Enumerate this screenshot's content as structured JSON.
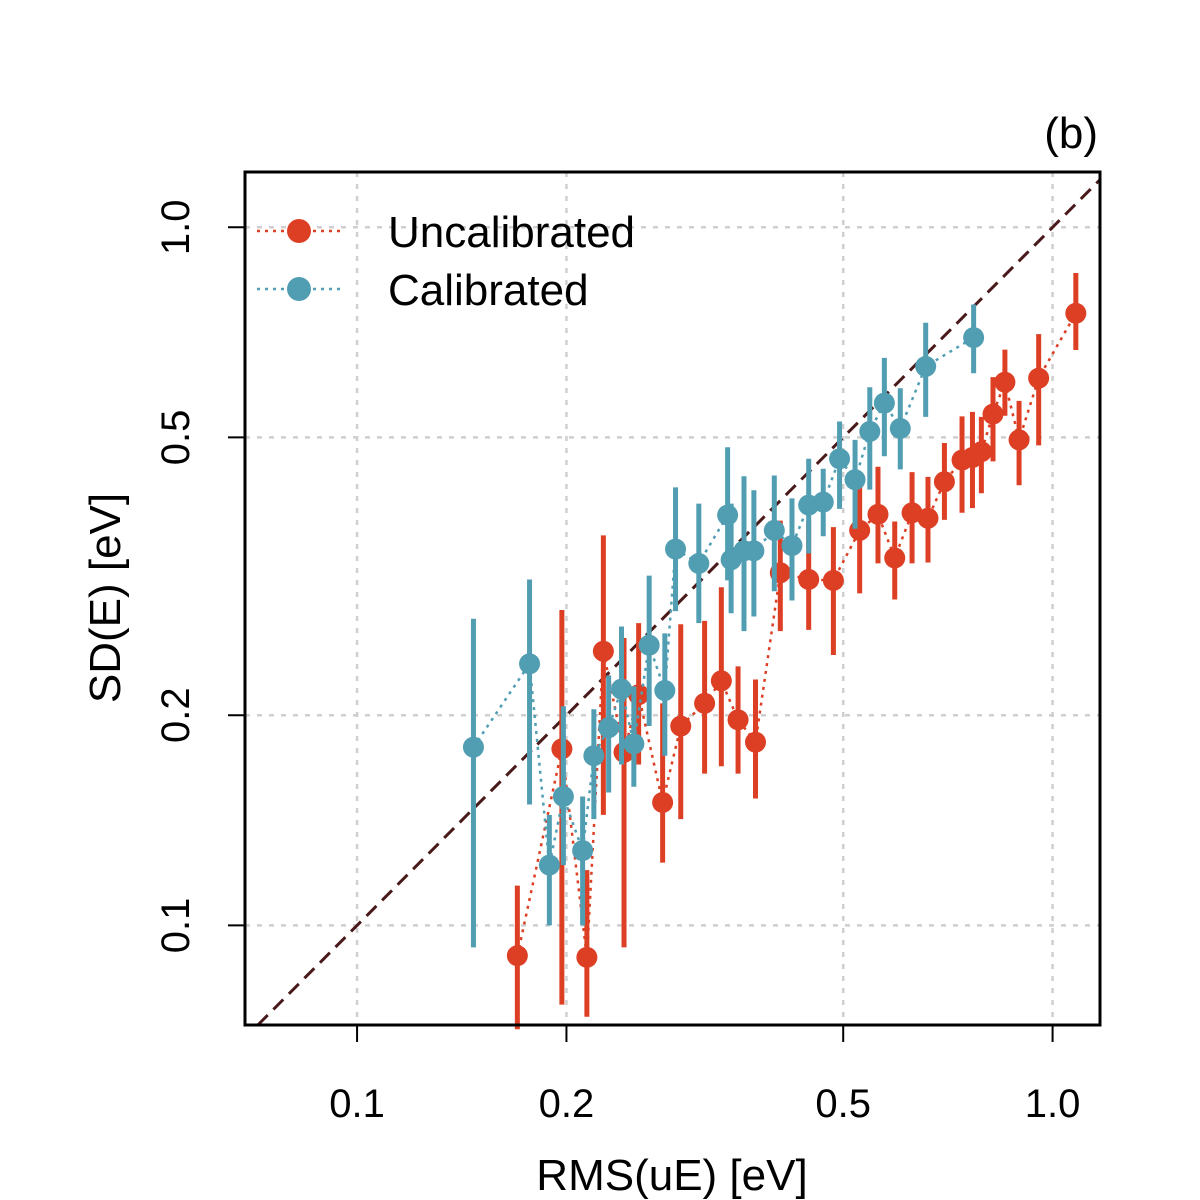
{
  "chart_data": {
    "type": "scatter",
    "panel_label": "(b)",
    "xlabel": "RMS(uE) [eV]",
    "ylabel": "SD(E) [eV]",
    "x_scale": "log",
    "y_scale": "log",
    "xlim": [
      0.069,
      1.17
    ],
    "ylim": [
      0.072,
      1.2
    ],
    "x_ticks": [
      {
        "value": 0.1,
        "label": "0.1"
      },
      {
        "value": 0.2,
        "label": "0.2"
      },
      {
        "value": 0.5,
        "label": "0.5"
      },
      {
        "value": 1.0,
        "label": "1.0"
      }
    ],
    "y_ticks": [
      {
        "value": 0.1,
        "label": "0.1"
      },
      {
        "value": 0.2,
        "label": "0.2"
      },
      {
        "value": 0.5,
        "label": "0.5"
      },
      {
        "value": 1.0,
        "label": "1.0"
      }
    ],
    "grid": true,
    "identity_line": true,
    "legend_position": "top-left",
    "series": [
      {
        "name": "Uncalibrated",
        "color": "#dd3f24",
        "points": [
          {
            "x": 0.17,
            "y": 0.0905,
            "lo": 0.071,
            "hi": 0.114
          },
          {
            "x": 0.197,
            "y": 0.179,
            "lo": 0.077,
            "hi": 0.283
          },
          {
            "x": 0.214,
            "y": 0.09,
            "lo": 0.074,
            "hi": 0.12
          },
          {
            "x": 0.226,
            "y": 0.247,
            "lo": 0.144,
            "hi": 0.362
          },
          {
            "x": 0.242,
            "y": 0.177,
            "lo": 0.093,
            "hi": 0.258
          },
          {
            "x": 0.254,
            "y": 0.214,
            "lo": 0.17,
            "hi": 0.271
          },
          {
            "x": 0.275,
            "y": 0.15,
            "lo": 0.123,
            "hi": 0.208
          },
          {
            "x": 0.292,
            "y": 0.193,
            "lo": 0.142,
            "hi": 0.27
          },
          {
            "x": 0.316,
            "y": 0.208,
            "lo": 0.165,
            "hi": 0.273
          },
          {
            "x": 0.334,
            "y": 0.224,
            "lo": 0.169,
            "hi": 0.305
          },
          {
            "x": 0.353,
            "y": 0.197,
            "lo": 0.165,
            "hi": 0.235
          },
          {
            "x": 0.374,
            "y": 0.183,
            "lo": 0.152,
            "hi": 0.225
          },
          {
            "x": 0.406,
            "y": 0.32,
            "lo": 0.264,
            "hi": 0.38
          },
          {
            "x": 0.446,
            "y": 0.313,
            "lo": 0.265,
            "hi": 0.38
          },
          {
            "x": 0.484,
            "y": 0.312,
            "lo": 0.244,
            "hi": 0.372
          },
          {
            "x": 0.528,
            "y": 0.368,
            "lo": 0.299,
            "hi": 0.43
          },
          {
            "x": 0.561,
            "y": 0.388,
            "lo": 0.33,
            "hi": 0.454
          },
          {
            "x": 0.593,
            "y": 0.336,
            "lo": 0.293,
            "hi": 0.379
          },
          {
            "x": 0.628,
            "y": 0.39,
            "lo": 0.33,
            "hi": 0.446
          },
          {
            "x": 0.662,
            "y": 0.383,
            "lo": 0.331,
            "hi": 0.439
          },
          {
            "x": 0.699,
            "y": 0.432,
            "lo": 0.381,
            "hi": 0.491
          },
          {
            "x": 0.741,
            "y": 0.464,
            "lo": 0.39,
            "hi": 0.536
          },
          {
            "x": 0.767,
            "y": 0.468,
            "lo": 0.396,
            "hi": 0.544
          },
          {
            "x": 0.79,
            "y": 0.477,
            "lo": 0.416,
            "hi": 0.535
          },
          {
            "x": 0.821,
            "y": 0.54,
            "lo": 0.462,
            "hi": 0.61
          },
          {
            "x": 0.854,
            "y": 0.6,
            "lo": 0.537,
            "hi": 0.668
          },
          {
            "x": 0.895,
            "y": 0.496,
            "lo": 0.427,
            "hi": 0.564
          },
          {
            "x": 0.955,
            "y": 0.608,
            "lo": 0.487,
            "hi": 0.703
          },
          {
            "x": 1.08,
            "y": 0.753,
            "lo": 0.667,
            "hi": 0.86
          }
        ]
      },
      {
        "name": "Calibrated",
        "color": "#519eb3",
        "points": [
          {
            "x": 0.147,
            "y": 0.18,
            "lo": 0.093,
            "hi": 0.275
          },
          {
            "x": 0.177,
            "y": 0.237,
            "lo": 0.149,
            "hi": 0.313
          },
          {
            "x": 0.189,
            "y": 0.122,
            "lo": 0.1,
            "hi": 0.144
          },
          {
            "x": 0.198,
            "y": 0.153,
            "lo": 0.122,
            "hi": 0.206
          },
          {
            "x": 0.211,
            "y": 0.128,
            "lo": 0.1,
            "hi": 0.153
          },
          {
            "x": 0.219,
            "y": 0.175,
            "lo": 0.142,
            "hi": 0.204
          },
          {
            "x": 0.23,
            "y": 0.192,
            "lo": 0.155,
            "hi": 0.228
          },
          {
            "x": 0.24,
            "y": 0.218,
            "lo": 0.17,
            "hi": 0.268
          },
          {
            "x": 0.25,
            "y": 0.182,
            "lo": 0.158,
            "hi": 0.22
          },
          {
            "x": 0.263,
            "y": 0.252,
            "lo": 0.193,
            "hi": 0.317
          },
          {
            "x": 0.277,
            "y": 0.217,
            "lo": 0.175,
            "hi": 0.262
          },
          {
            "x": 0.287,
            "y": 0.346,
            "lo": 0.282,
            "hi": 0.424
          },
          {
            "x": 0.31,
            "y": 0.33,
            "lo": 0.271,
            "hi": 0.402
          },
          {
            "x": 0.341,
            "y": 0.387,
            "lo": 0.312,
            "hi": 0.484
          },
          {
            "x": 0.345,
            "y": 0.334,
            "lo": 0.28,
            "hi": 0.402
          },
          {
            "x": 0.36,
            "y": 0.344,
            "lo": 0.264,
            "hi": 0.44
          },
          {
            "x": 0.372,
            "y": 0.344,
            "lo": 0.277,
            "hi": 0.42
          },
          {
            "x": 0.398,
            "y": 0.368,
            "lo": 0.301,
            "hi": 0.441
          },
          {
            "x": 0.422,
            "y": 0.35,
            "lo": 0.292,
            "hi": 0.409
          },
          {
            "x": 0.446,
            "y": 0.4,
            "lo": 0.341,
            "hi": 0.466
          },
          {
            "x": 0.468,
            "y": 0.404,
            "lo": 0.361,
            "hi": 0.451
          },
          {
            "x": 0.494,
            "y": 0.466,
            "lo": 0.395,
            "hi": 0.527
          },
          {
            "x": 0.52,
            "y": 0.435,
            "lo": 0.37,
            "hi": 0.496
          },
          {
            "x": 0.546,
            "y": 0.51,
            "lo": 0.421,
            "hi": 0.59
          },
          {
            "x": 0.573,
            "y": 0.56,
            "lo": 0.47,
            "hi": 0.65
          },
          {
            "x": 0.604,
            "y": 0.515,
            "lo": 0.45,
            "hi": 0.588
          },
          {
            "x": 0.657,
            "y": 0.632,
            "lo": 0.535,
            "hi": 0.73
          },
          {
            "x": 0.77,
            "y": 0.695,
            "lo": 0.618,
            "hi": 0.775
          }
        ]
      }
    ]
  }
}
